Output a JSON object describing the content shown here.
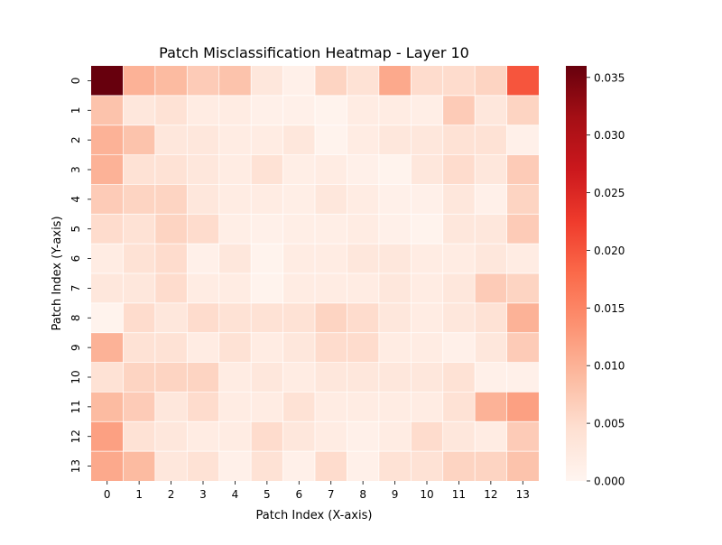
{
  "chart_data": {
    "type": "heatmap",
    "title": "Patch Misclassification Heatmap - Layer 10",
    "xlabel": "Patch Index (X-axis)",
    "ylabel": "Patch Index (Y-axis)",
    "x_ticks": [
      "0",
      "1",
      "2",
      "3",
      "4",
      "5",
      "6",
      "7",
      "8",
      "9",
      "10",
      "11",
      "12",
      "13"
    ],
    "y_ticks": [
      "0",
      "1",
      "2",
      "3",
      "4",
      "5",
      "6",
      "7",
      "8",
      "9",
      "10",
      "11",
      "12",
      "13"
    ],
    "colorbar": {
      "min": 0.0,
      "max": 0.036,
      "ticks": [
        0.0,
        0.005,
        0.01,
        0.015,
        0.02,
        0.025,
        0.03,
        0.035
      ],
      "tick_labels": [
        "0.000",
        "0.005",
        "0.010",
        "0.015",
        "0.020",
        "0.025",
        "0.030",
        "0.035"
      ]
    },
    "colormap": "Reds",
    "colormap_stops": [
      "#fff5f0",
      "#fee0d2",
      "#fcbba1",
      "#fc9272",
      "#fb6a4a",
      "#ef3b2c",
      "#cb181d",
      "#a50f15",
      "#67000d"
    ],
    "grid_line_color": "#ffffff",
    "values": [
      [
        0.036,
        0.01,
        0.009,
        0.007,
        0.008,
        0.003,
        0.001,
        0.006,
        0.004,
        0.011,
        0.005,
        0.005,
        0.006,
        0.02
      ],
      [
        0.008,
        0.003,
        0.004,
        0.002,
        0.002,
        0.001,
        0.001,
        0.0005,
        0.002,
        0.002,
        0.0015,
        0.007,
        0.003,
        0.006
      ],
      [
        0.01,
        0.008,
        0.003,
        0.003,
        0.002,
        0.002,
        0.003,
        0.0005,
        0.002,
        0.003,
        0.003,
        0.004,
        0.004,
        0.001
      ],
      [
        0.01,
        0.004,
        0.004,
        0.003,
        0.002,
        0.004,
        0.0015,
        0.002,
        0.001,
        0.0005,
        0.003,
        0.005,
        0.003,
        0.007
      ],
      [
        0.007,
        0.006,
        0.006,
        0.003,
        0.002,
        0.002,
        0.0015,
        0.003,
        0.002,
        0.001,
        0.001,
        0.003,
        0.001,
        0.006
      ],
      [
        0.005,
        0.004,
        0.006,
        0.005,
        0.0015,
        0.001,
        0.0015,
        0.0015,
        0.002,
        0.001,
        0.0005,
        0.003,
        0.003,
        0.007
      ],
      [
        0.002,
        0.004,
        0.005,
        0.001,
        0.003,
        0.0005,
        0.002,
        0.002,
        0.003,
        0.003,
        0.002,
        0.002,
        0.003,
        0.002
      ],
      [
        0.003,
        0.003,
        0.005,
        0.002,
        0.002,
        0.0005,
        0.002,
        0.002,
        0.002,
        0.003,
        0.002,
        0.003,
        0.007,
        0.006
      ],
      [
        0.0005,
        0.005,
        0.003,
        0.005,
        0.004,
        0.004,
        0.004,
        0.006,
        0.005,
        0.003,
        0.002,
        0.003,
        0.004,
        0.01
      ],
      [
        0.01,
        0.004,
        0.004,
        0.002,
        0.004,
        0.002,
        0.003,
        0.005,
        0.005,
        0.002,
        0.002,
        0.001,
        0.003,
        0.007
      ],
      [
        0.004,
        0.006,
        0.006,
        0.006,
        0.002,
        0.003,
        0.002,
        0.003,
        0.003,
        0.003,
        0.003,
        0.004,
        0.001,
        0.001
      ],
      [
        0.009,
        0.007,
        0.003,
        0.005,
        0.002,
        0.002,
        0.004,
        0.002,
        0.002,
        0.002,
        0.002,
        0.004,
        0.01,
        0.012
      ],
      [
        0.012,
        0.004,
        0.003,
        0.002,
        0.002,
        0.005,
        0.003,
        0.002,
        0.001,
        0.002,
        0.005,
        0.003,
        0.002,
        0.007
      ],
      [
        0.011,
        0.009,
        0.003,
        0.004,
        0.001,
        0.004,
        0.001,
        0.005,
        0.001,
        0.004,
        0.004,
        0.006,
        0.006,
        0.008
      ]
    ]
  }
}
